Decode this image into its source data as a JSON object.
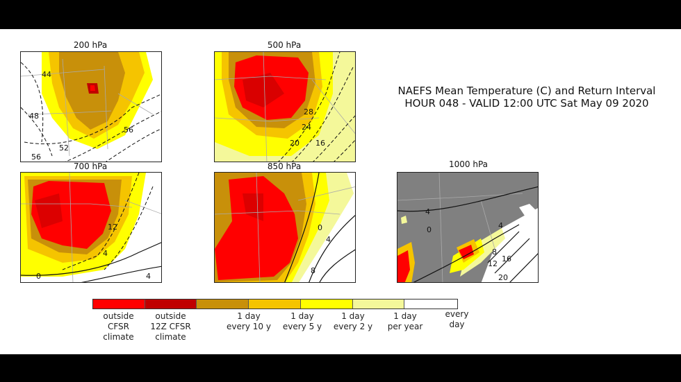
{
  "title": {
    "line1": "NAEFS Mean Temperature (C) and Return Interval",
    "line2": "HOUR 048 - VALID 12:00 UTC Sat May 09 2020"
  },
  "panels": [
    {
      "label": "200 hPa",
      "contours": [
        "44",
        "48",
        "52",
        "56",
        "56"
      ]
    },
    {
      "label": "500 hPa",
      "contours": [
        "28",
        "24",
        "20",
        "16"
      ]
    },
    {
      "label": "700 hPa",
      "contours": [
        "12",
        "4",
        "0",
        "4"
      ]
    },
    {
      "label": "850 hPa",
      "contours": [
        "0",
        "4",
        "8"
      ]
    },
    {
      "label": "1000 hPa",
      "contours": [
        "4",
        "0",
        "4",
        "8",
        "12",
        "16",
        "20"
      ]
    }
  ],
  "legend": {
    "colors": {
      "outside_cfsr": "#ff0000",
      "outside_12z_cfsr": "#c00000",
      "every_10y": "#c8900a",
      "every_5y": "#f5c400",
      "every_2y": "#ffff00",
      "per_year": "#f4f89a",
      "every_day": "#ffffff",
      "land_grey": "#808080"
    },
    "labels": [
      {
        "l1": "outside",
        "l2": "CFSR",
        "l3": "climate"
      },
      {
        "l1": "outside",
        "l2": "12Z CFSR",
        "l3": "climate"
      },
      {
        "l1": "1 day",
        "l2": "every 10 y"
      },
      {
        "l1": "1 day",
        "l2": "every 5 y"
      },
      {
        "l1": "1 day",
        "l2": "every 2 y"
      },
      {
        "l1": "1 day",
        "l2": "per year"
      },
      {
        "l1": "every",
        "l2": "day"
      }
    ]
  }
}
